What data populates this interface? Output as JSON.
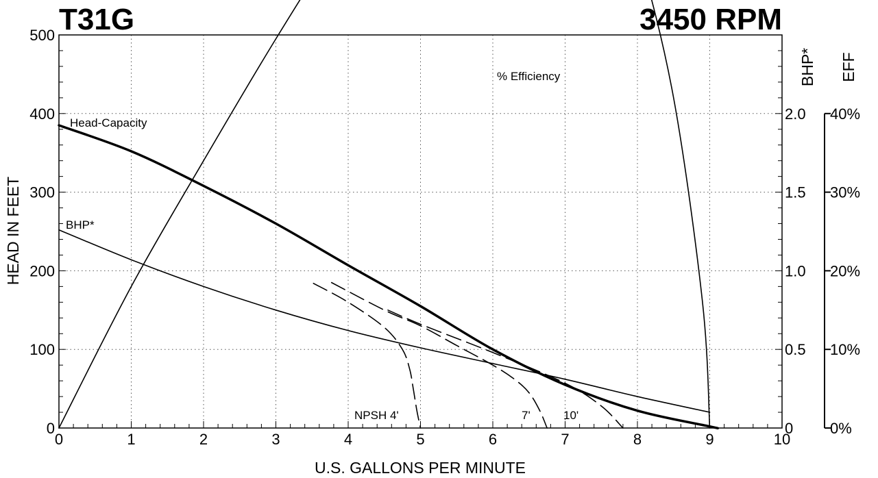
{
  "chart_data": {
    "type": "line",
    "title_left": "T31G",
    "title_right": "3450 RPM",
    "xlabel": "U.S. GALLONS PER MINUTE",
    "ylabel": "HEAD IN FEET",
    "y2label": "BHP*",
    "y3label": "EFF",
    "xlim": [
      0,
      10
    ],
    "ylim": [
      0,
      500
    ],
    "y2lim": [
      0,
      2.5
    ],
    "y3lim": [
      0,
      50
    ],
    "grid": true,
    "x_ticks": [
      "0",
      "1",
      "2",
      "3",
      "4",
      "5",
      "6",
      "7",
      "8",
      "9",
      "10"
    ],
    "y_ticks": [
      "0",
      "100",
      "200",
      "300",
      "400",
      "500"
    ],
    "y2_ticks": [
      "0",
      "0.5",
      "1.0",
      "1.5",
      "2.0"
    ],
    "y3_ticks": [
      "0%",
      "10%",
      "20%",
      "30%",
      "40%"
    ],
    "series": [
      {
        "name": "Head-Capacity",
        "axis": "head",
        "x": [
          0,
          1,
          2,
          3,
          4,
          5,
          6,
          7,
          8,
          9,
          9.1
        ],
        "y": [
          385,
          352,
          308,
          260,
          207,
          155,
          100,
          55,
          22,
          2,
          0
        ]
      },
      {
        "name": "BHP*",
        "axis": "bhp",
        "x": [
          0,
          1,
          2,
          3,
          4,
          5,
          6,
          7,
          8,
          9
        ],
        "y": [
          1.26,
          1.07,
          0.9,
          0.75,
          0.62,
          0.51,
          0.41,
          0.31,
          0.2,
          0.1
        ]
      },
      {
        "name": "% Efficiency",
        "axis": "eff",
        "x": [
          0,
          1,
          2,
          3,
          4,
          5,
          6,
          6.2,
          6.5,
          7,
          7.5,
          8,
          8.5,
          8.9,
          9
        ],
        "y": [
          0,
          18,
          34,
          49.5,
          64,
          77,
          85.5,
          87,
          86.5,
          82,
          74,
          61,
          42,
          16,
          0
        ]
      },
      {
        "name": "NPSH 4'",
        "axis": "head",
        "dashed": true,
        "x": [
          3.52,
          4,
          4.5,
          4.75,
          4.85,
          4.9,
          4.95,
          5.0
        ],
        "y": [
          184,
          160,
          128,
          100,
          75,
          50,
          22,
          0
        ]
      },
      {
        "name": "7'",
        "axis": "head",
        "dashed": true,
        "x": [
          3.77,
          4.5,
          5,
          5.5,
          6,
          6.3,
          6.5,
          6.65,
          6.75
        ],
        "y": [
          185,
          150,
          130,
          105,
          80,
          62,
          45,
          22,
          0
        ]
      },
      {
        "name": "10'",
        "axis": "head",
        "dashed": true,
        "x": [
          4.55,
          5,
          6,
          7,
          7.5,
          7.8
        ],
        "y": [
          150,
          132,
          96,
          57,
          28,
          0
        ]
      }
    ],
    "annotations": {
      "head_capacity": "Head-Capacity",
      "bhp": "BHP*",
      "efficiency": "% Efficiency",
      "npsh": "NPSH  4'",
      "seven": "7'",
      "ten": "10'"
    }
  }
}
